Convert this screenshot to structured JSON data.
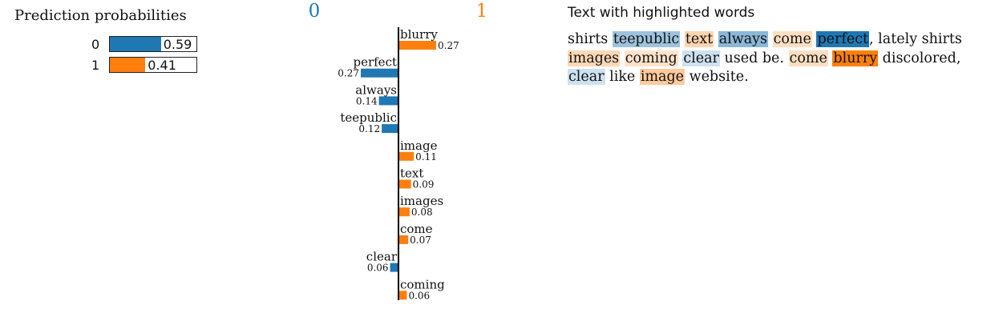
{
  "probabilities": {
    "title": "Prediction probabilities",
    "rows": [
      {
        "label": "0",
        "value": 0.59,
        "display": "0.59",
        "color": "#1f77b4"
      },
      {
        "label": "1",
        "value": 0.41,
        "display": "0.41",
        "color": "#ff7f0e"
      }
    ]
  },
  "chart_data": {
    "type": "bar",
    "orientation": "horizontal",
    "class_labels": [
      "0",
      "1"
    ],
    "class_colors": [
      "#1f77b4",
      "#ff7f0e"
    ],
    "categories": [
      "blurry",
      "perfect",
      "always",
      "teepublic",
      "image",
      "text",
      "images",
      "come",
      "clear",
      "coming"
    ],
    "values": [
      0.27,
      0.27,
      0.14,
      0.12,
      0.11,
      0.09,
      0.08,
      0.07,
      0.06,
      0.06
    ],
    "class_index": [
      1,
      0,
      0,
      0,
      1,
      1,
      1,
      1,
      0,
      1
    ],
    "value_labels": [
      "0.27",
      "0.27",
      "0.14",
      "0.12",
      "0.11",
      "0.09",
      "0.08",
      "0.07",
      "0.06",
      "0.06"
    ],
    "xlim": [
      0,
      0.27
    ]
  },
  "highlighted_text": {
    "title": "Text with highlighted words",
    "lines": [
      [
        {
          "text": "shirts"
        },
        {
          "text": " "
        },
        {
          "text": "teepublic",
          "color": "#1f77b4",
          "weight": 0.44
        },
        {
          "text": " "
        },
        {
          "text": "text",
          "color": "#ff7f0e",
          "weight": 0.33
        },
        {
          "text": " "
        },
        {
          "text": "always",
          "color": "#1f77b4",
          "weight": 0.52
        },
        {
          "text": " "
        },
        {
          "text": "come",
          "color": "#ff7f0e",
          "weight": 0.26
        },
        {
          "text": " "
        },
        {
          "text": "perfect",
          "color": "#1f77b4",
          "weight": 1.0
        },
        {
          "text": ", lately shirts"
        }
      ],
      [
        {
          "text": "images",
          "color": "#ff7f0e",
          "weight": 0.3
        },
        {
          "text": " "
        },
        {
          "text": "coming",
          "color": "#ff7f0e",
          "weight": 0.22
        },
        {
          "text": " "
        },
        {
          "text": "clear",
          "color": "#1f77b4",
          "weight": 0.22
        },
        {
          "text": " used be. "
        },
        {
          "text": "come",
          "color": "#ff7f0e",
          "weight": 0.26
        },
        {
          "text": " "
        },
        {
          "text": "blurry",
          "color": "#ff7f0e",
          "weight": 1.0
        },
        {
          "text": " discolored,"
        }
      ],
      [
        {
          "text": "clear",
          "color": "#1f77b4",
          "weight": 0.22
        },
        {
          "text": " like "
        },
        {
          "text": "image",
          "color": "#ff7f0e",
          "weight": 0.41
        },
        {
          "text": " website."
        }
      ]
    ]
  }
}
